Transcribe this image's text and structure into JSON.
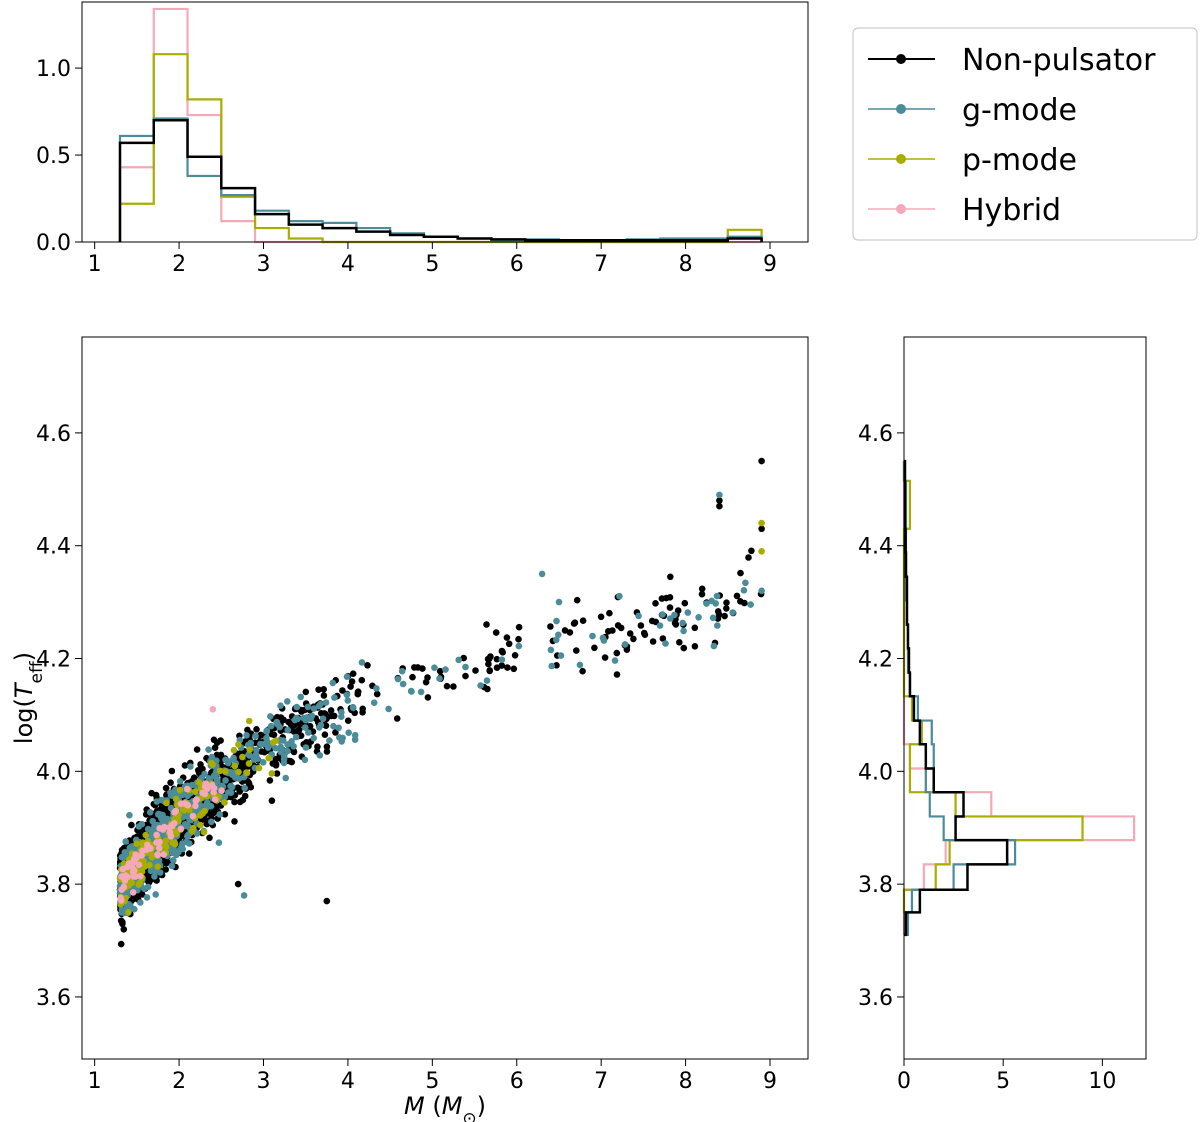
{
  "colors": {
    "non_pulsator": "#000000",
    "g_mode": "#4a8c99",
    "p_mode": "#a9ad00",
    "hybrid": "#f5a9b8"
  },
  "legend": {
    "location": "top-right",
    "items": [
      {
        "key": "non_pulsator",
        "label": "Non-pulsator"
      },
      {
        "key": "g_mode",
        "label": "g-mode"
      },
      {
        "key": "p_mode",
        "label": "p-mode"
      },
      {
        "key": "hybrid",
        "label": "Hybrid"
      }
    ]
  },
  "chart_data": [
    {
      "id": "mass_histogram",
      "type": "histogram-step",
      "title": "",
      "xlabel": "",
      "ylabel": "",
      "xlim": [
        0.85,
        9.45
      ],
      "ylim": [
        0,
        1.38
      ],
      "xticks": [
        1,
        2,
        3,
        4,
        5,
        6,
        7,
        8,
        9
      ],
      "yticks": [
        0.0,
        0.5,
        1.0
      ],
      "ytick_labels": [
        "0.0",
        "0.5",
        "1.0"
      ],
      "bin_edges": [
        1.3,
        1.7,
        2.1,
        2.5,
        2.9,
        3.3,
        3.7,
        4.1,
        4.5,
        4.9,
        5.3,
        5.7,
        6.1,
        6.5,
        6.9,
        7.3,
        7.7,
        8.1,
        8.5,
        8.9
      ],
      "series": [
        {
          "key": "non_pulsator",
          "values": [
            0.57,
            0.7,
            0.49,
            0.31,
            0.16,
            0.1,
            0.08,
            0.06,
            0.04,
            0.03,
            0.02,
            0.015,
            0.01,
            0.01,
            0.01,
            0.01,
            0.01,
            0.01,
            0.02
          ]
        },
        {
          "key": "g_mode",
          "values": [
            0.61,
            0.71,
            0.38,
            0.27,
            0.18,
            0.12,
            0.11,
            0.08,
            0.05,
            0.03,
            0.02,
            0.01,
            0.015,
            0.01,
            0.01,
            0.015,
            0.02,
            0.02,
            0.03
          ]
        },
        {
          "key": "p_mode",
          "values": [
            0.22,
            1.08,
            0.82,
            0.26,
            0.08,
            0.02,
            0.0,
            0.0,
            0.0,
            0.0,
            0.0,
            0.0,
            0.0,
            0.0,
            0.0,
            0.0,
            0.0,
            0.0,
            0.07
          ]
        },
        {
          "key": "hybrid",
          "values": [
            0.43,
            1.34,
            0.73,
            0.12,
            0.0,
            0.0,
            0.0,
            0.0,
            0.0,
            0.0,
            0.0,
            0.0,
            0.0,
            0.0,
            0.0,
            0.0,
            0.0,
            0.0,
            0.0
          ]
        }
      ]
    },
    {
      "id": "mass_teff_scatter",
      "type": "scatter",
      "title": "",
      "xlabel": "M (M⊙)",
      "xlabel_parts": {
        "var": "M",
        "open": " (",
        "unit": "M",
        "unit_sub": "⊙",
        "close": ")"
      },
      "ylabel": "log(Teff)",
      "ylabel_parts": {
        "pre": "log(",
        "var": "T",
        "sub": "eff",
        "post": ")"
      },
      "xlim": [
        0.85,
        9.45
      ],
      "ylim": [
        3.49,
        4.77
      ],
      "xticks": [
        1,
        2,
        3,
        4,
        5,
        6,
        7,
        8,
        9
      ],
      "yticks": [
        3.6,
        3.8,
        4.0,
        4.2,
        4.4,
        4.6
      ],
      "ytick_labels": [
        "3.6",
        "3.8",
        "4.0",
        "4.2",
        "4.4",
        "4.6"
      ],
      "trend": {
        "mass_knots": [
          1.3,
          2,
          3,
          4,
          5,
          6,
          7,
          8,
          9
        ],
        "logteff_knots": [
          3.8,
          3.92,
          4.04,
          4.12,
          4.17,
          4.21,
          4.24,
          4.28,
          4.33
        ]
      },
      "series": [
        {
          "key": "non_pulsator",
          "n_points": 1400,
          "spread": 0.03,
          "outliers": [
            [
              3.75,
              3.77
            ],
            [
              2.7,
              3.8
            ],
            [
              8.9,
              4.55
            ],
            [
              8.4,
              4.47
            ],
            [
              8.4,
              4.48
            ],
            [
              8.9,
              4.43
            ]
          ]
        },
        {
          "key": "g_mode",
          "n_points": 650,
          "spread": 0.03,
          "outliers": [
            [
              2.77,
              3.78
            ],
            [
              6.3,
              4.35
            ],
            [
              8.4,
              4.49
            ],
            [
              8.9,
              4.32
            ],
            [
              6.5,
              4.3
            ]
          ]
        },
        {
          "key": "p_mode",
          "n_points": 160,
          "spread": 0.022,
          "max_mass": 3.2,
          "outliers": [
            [
              1.4,
              3.75
            ],
            [
              8.9,
              4.44
            ],
            [
              8.9,
              4.39
            ]
          ]
        },
        {
          "key": "hybrid",
          "n_points": 70,
          "spread": 0.015,
          "max_mass": 2.6,
          "outliers": [
            [
              2.4,
              4.11
            ]
          ]
        }
      ]
    },
    {
      "id": "teff_histogram",
      "type": "histogram-step-horizontal",
      "title": "",
      "xlabel": "",
      "ylabel": "",
      "xlim": [
        0,
        12.2
      ],
      "ylim": [
        3.49,
        4.77
      ],
      "xticks": [
        0,
        5,
        10
      ],
      "yticks": [
        3.6,
        3.8,
        4.0,
        4.2,
        4.4,
        4.6
      ],
      "ytick_labels": [
        "3.6",
        "3.8",
        "4.0",
        "4.2",
        "4.4",
        "4.6"
      ],
      "bin_edges": [
        3.71,
        3.75,
        3.79,
        3.835,
        3.878,
        3.92,
        3.963,
        4.005,
        4.048,
        4.09,
        4.133,
        4.175,
        4.218,
        4.26,
        4.303,
        4.345,
        4.388,
        4.43,
        4.473,
        4.515,
        4.55
      ],
      "series": [
        {
          "key": "non_pulsator",
          "values": [
            0.1,
            0.8,
            3.2,
            5.2,
            2.6,
            3.0,
            1.5,
            1.1,
            0.8,
            0.5,
            0.3,
            0.25,
            0.2,
            0.15,
            0.15,
            0.1,
            0.08,
            0.05,
            0.05,
            0.05
          ]
        },
        {
          "key": "g_mode",
          "values": [
            0.2,
            0.4,
            2.5,
            5.6,
            2.0,
            1.3,
            1.1,
            1.5,
            1.4,
            0.7,
            0.3,
            0.2,
            0.2,
            0.15,
            0.1,
            0.1,
            0.1,
            0.1,
            0.1,
            0.0
          ]
        },
        {
          "key": "p_mode",
          "values": [
            0.1,
            0.0,
            1.6,
            2.3,
            9.0,
            2.6,
            0.3,
            0.3,
            0.9,
            0.4,
            0.0,
            0.0,
            0.0,
            0.0,
            0.0,
            0.0,
            0.0,
            0.3,
            0.3,
            0.0
          ]
        },
        {
          "key": "hybrid",
          "values": [
            0.0,
            0.0,
            1.0,
            2.1,
            11.6,
            4.4,
            1.1,
            0.3,
            0.0,
            0.0,
            0.0,
            0.0,
            0.0,
            0.0,
            0.0,
            0.0,
            0.0,
            0.0,
            0.0,
            0.0
          ]
        }
      ]
    }
  ]
}
